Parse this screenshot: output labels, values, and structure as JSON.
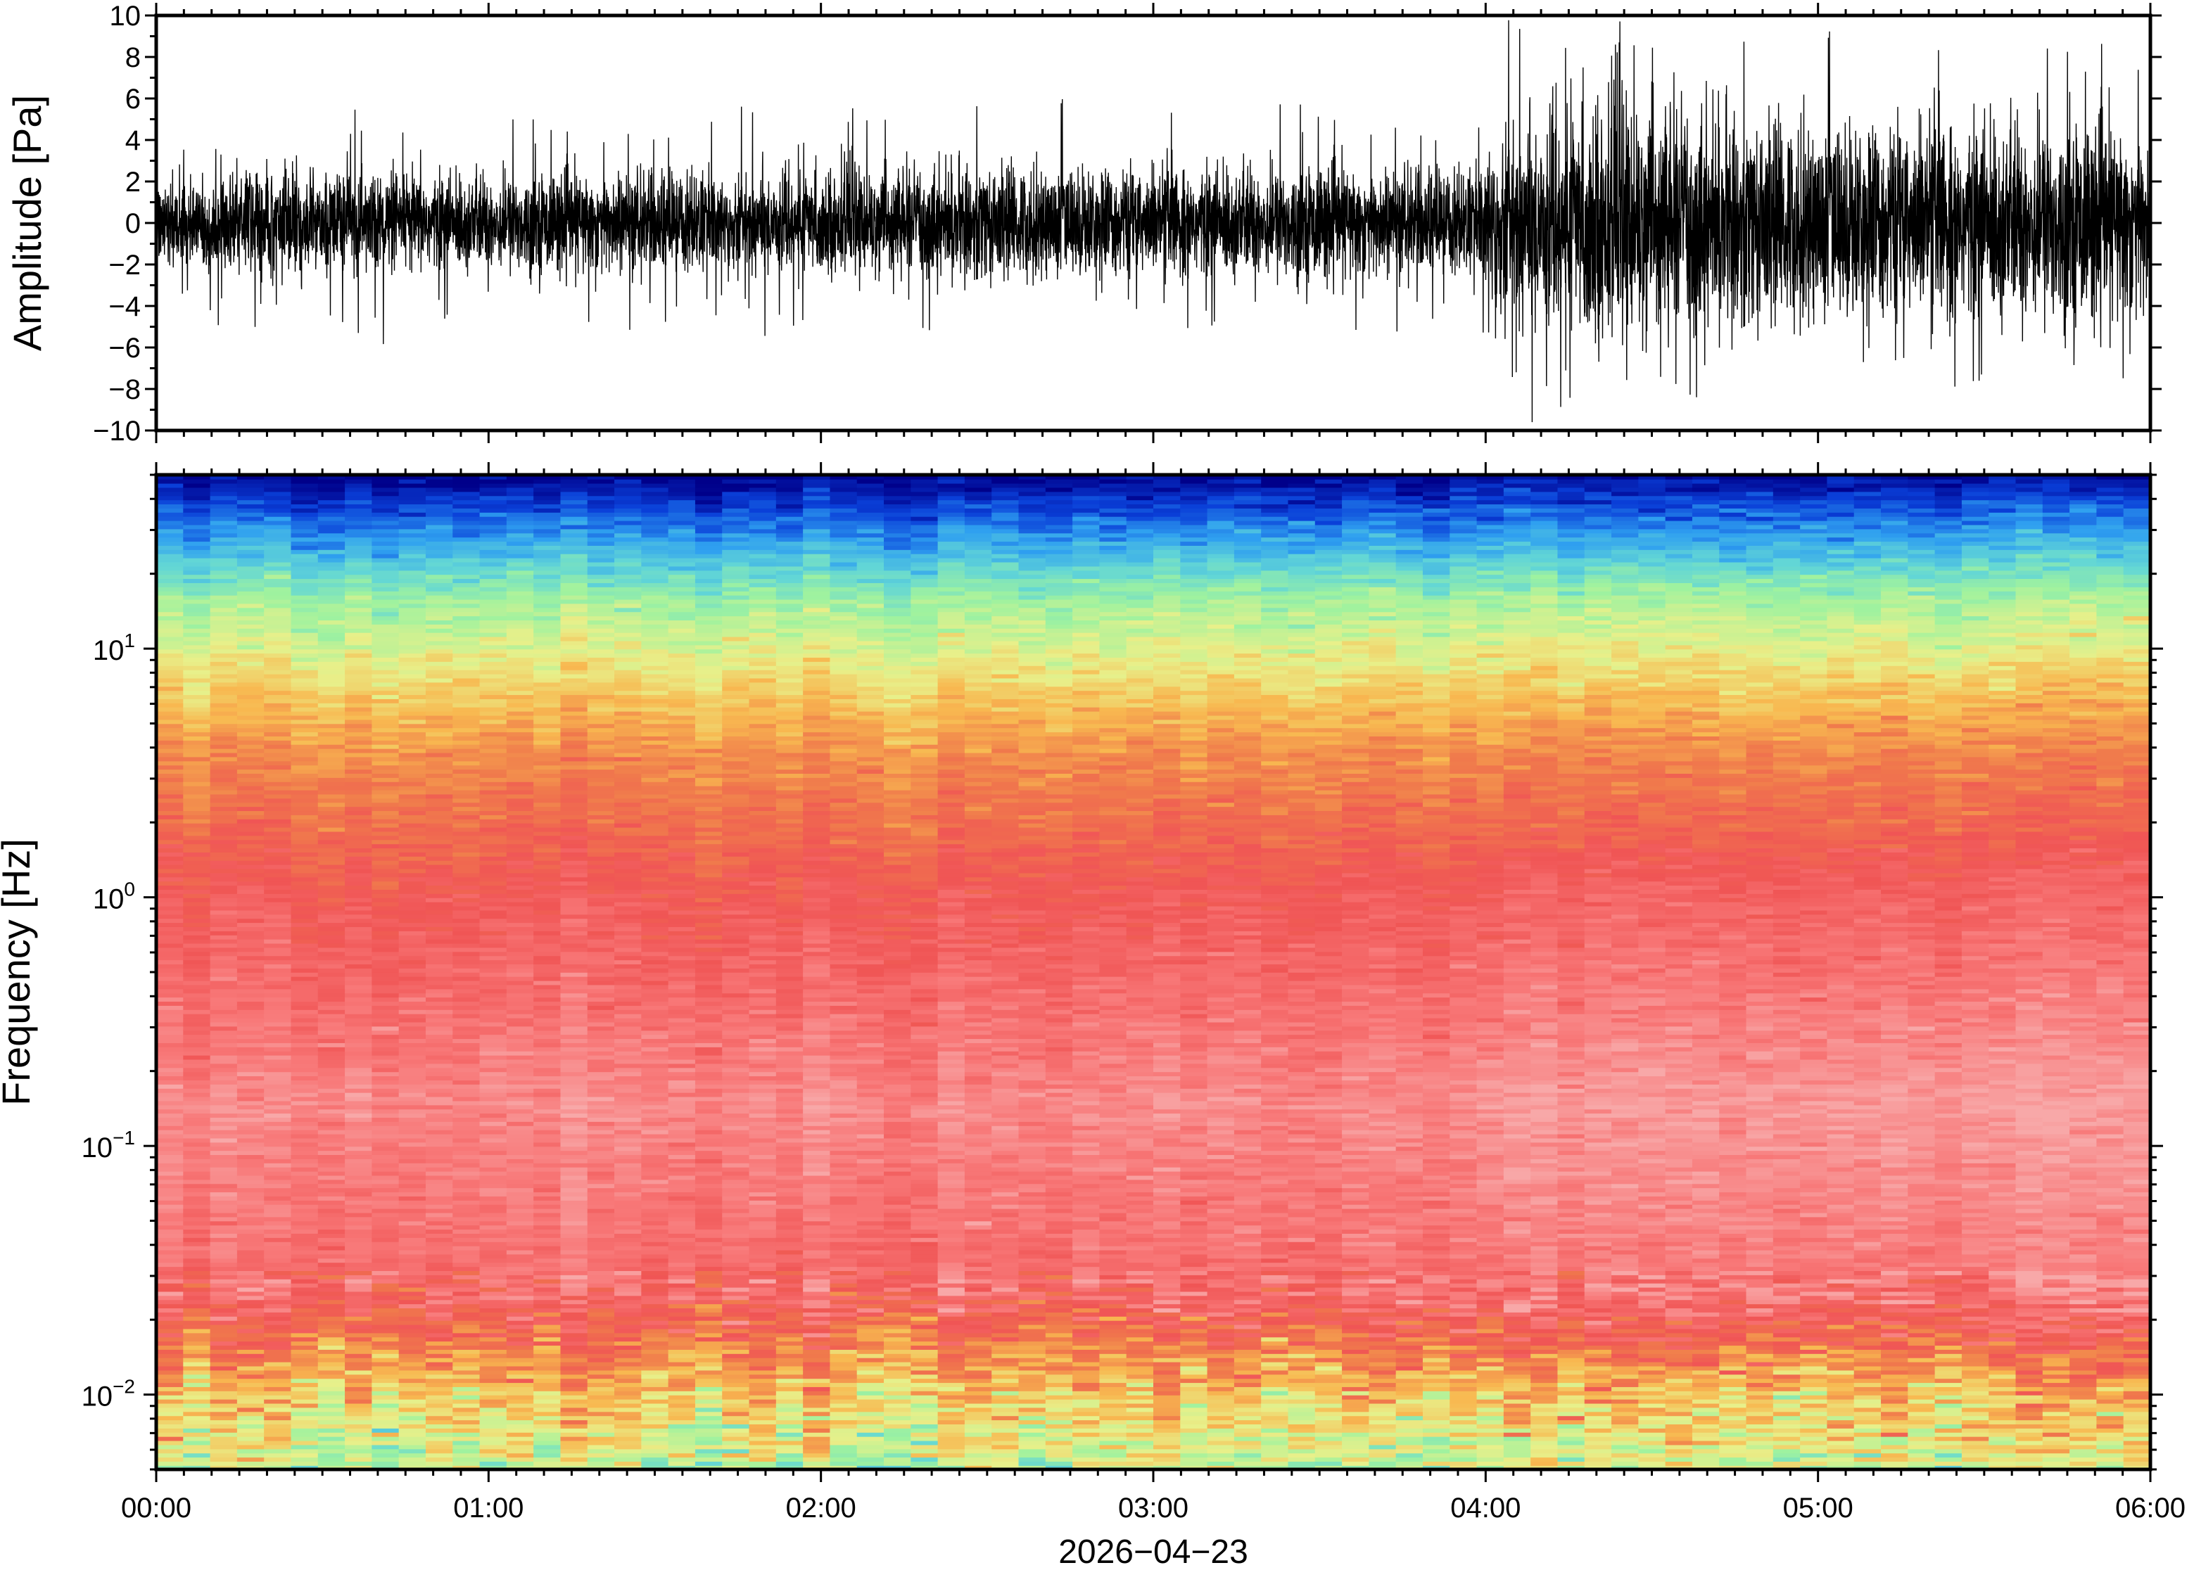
{
  "chart_data": [
    {
      "type": "line",
      "panel": "waveform",
      "ylabel": "Amplitude [Pa]",
      "ylim": [
        -10,
        10
      ],
      "yticks": [
        "10",
        "8",
        "6",
        "4",
        "2",
        "0",
        "−2",
        "−4",
        "−6",
        "−8",
        "−10"
      ],
      "ytick_values": [
        10,
        8,
        6,
        4,
        2,
        0,
        -2,
        -4,
        -6,
        -8,
        -10
      ],
      "xlim_hours": [
        0,
        6
      ],
      "envelope": {
        "hours": [
          0.0,
          0.5,
          1.0,
          1.5,
          2.0,
          2.5,
          3.0,
          3.5,
          3.98,
          4.02,
          4.4,
          4.8,
          5.2,
          5.6,
          6.0
        ],
        "typical_amplitude_pa": [
          2.6,
          2.8,
          2.6,
          2.9,
          2.7,
          3.1,
          3.0,
          3.1,
          3.0,
          5.5,
          6.5,
          5.6,
          5.4,
          5.5,
          5.3
        ],
        "peak_amplitude_pa": [
          4.5,
          6.5,
          5.5,
          6.0,
          5.5,
          6.5,
          6.0,
          6.5,
          5.5,
          10,
          10,
          10,
          9.5,
          9.5,
          9.0
        ]
      },
      "color": "#000000"
    },
    {
      "type": "heatmap",
      "panel": "spectrogram",
      "ylabel": "Frequency [Hz]",
      "yscale": "log",
      "ylim_hz": [
        0.005,
        50
      ],
      "yticks": [
        {
          "base": "10",
          "exp": "1",
          "value": 10
        },
        {
          "base": "10",
          "exp": "0",
          "value": 1
        },
        {
          "base": "10",
          "exp": "−1",
          "value": 0.1
        },
        {
          "base": "10",
          "exp": "−2",
          "value": 0.01
        }
      ],
      "colormap_stops": [
        "#00008a",
        "#0a3fd8",
        "#2fa0f0",
        "#62d6d6",
        "#9ff29f",
        "#e8f08a",
        "#f8b850",
        "#f07a4c",
        "#f05555",
        "#f87878",
        "#f8a8a8"
      ],
      "xlim_hours": [
        0,
        6
      ],
      "xticks": [
        "00:00",
        "01:00",
        "02:00",
        "03:00",
        "04:00",
        "05:00",
        "06:00"
      ],
      "xtick_hours": [
        0,
        1,
        2,
        3,
        4,
        5,
        6
      ],
      "xlabel": "2026−04−23"
    }
  ]
}
